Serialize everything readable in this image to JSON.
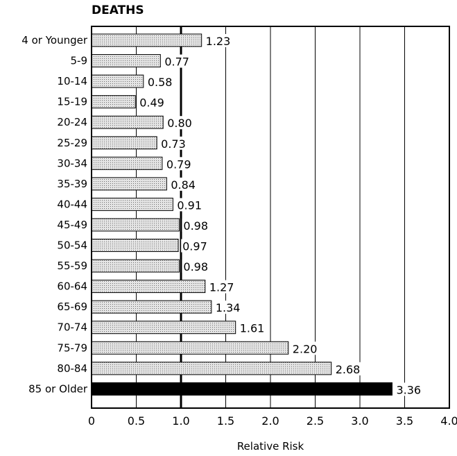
{
  "chart_data": {
    "type": "bar",
    "orientation": "horizontal",
    "title": "DEATHS",
    "xlabel": "Relative Risk",
    "ylabel": "",
    "xlim": [
      0,
      4.0
    ],
    "grid": "vertical",
    "reference_line": 1.0,
    "categories": [
      "4 or Younger",
      "5-9",
      "10-14",
      "15-19",
      "20-24",
      "25-29",
      "30-34",
      "35-39",
      "40-44",
      "45-49",
      "50-54",
      "55-59",
      "60-64",
      "65-69",
      "70-74",
      "75-79",
      "80-84",
      "85 or Older"
    ],
    "values": [
      1.23,
      0.77,
      0.58,
      0.49,
      0.8,
      0.73,
      0.79,
      0.84,
      0.91,
      0.98,
      0.97,
      0.98,
      1.27,
      1.34,
      1.61,
      2.2,
      2.68,
      3.36
    ],
    "value_labels": [
      "1.23",
      "0.77",
      "0.58",
      "0.49",
      "0.80",
      "0.73",
      "0.79",
      "0.84",
      "0.91",
      "0.98",
      "0.97",
      "0.98",
      "1.27",
      "1.34",
      "1.61",
      "2.20",
      "2.68",
      "3.36"
    ],
    "ticks": [
      0,
      0.5,
      1.0,
      1.5,
      2.0,
      2.5,
      3.0,
      3.5,
      4.0
    ],
    "tick_labels": [
      "0",
      "0.5",
      "1.0",
      "1.5",
      "2.0",
      "2.5",
      "3.0",
      "3.5",
      "4.0"
    ],
    "colors": {
      "bar_fill": "#e4e4e4",
      "highlight_bar_fill": "#000000",
      "grid": "#000000"
    },
    "highlight_categories": [
      "85 or Older"
    ]
  }
}
